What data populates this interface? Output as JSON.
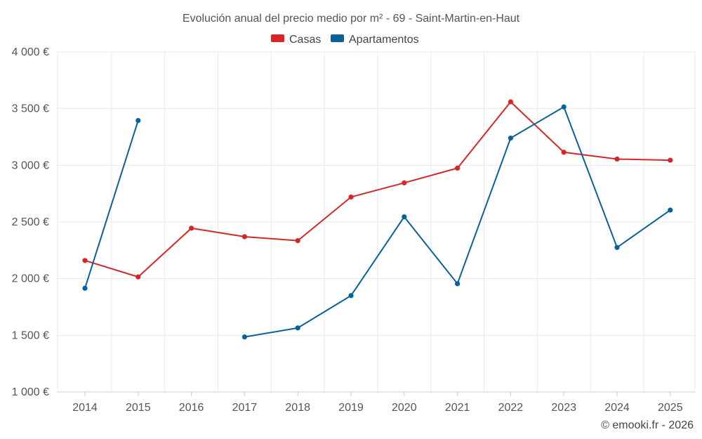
{
  "chart_data": {
    "type": "line",
    "title": "Evolución anual del precio medio por m² - 69 - Saint-Martin-en-Haut",
    "categories": [
      "2014",
      "2015",
      "2016",
      "2017",
      "2018",
      "2019",
      "2020",
      "2021",
      "2022",
      "2023",
      "2024",
      "2025"
    ],
    "ylim": [
      1000,
      4000
    ],
    "y_ticks": [
      1000,
      1500,
      2000,
      2500,
      3000,
      3500,
      4000
    ],
    "y_tick_labels": [
      "1 000 €",
      "1 500 €",
      "2 000 €",
      "2 500 €",
      "3 000 €",
      "3 500 €",
      "4 000 €"
    ],
    "legend_position": "top-center",
    "grid": true,
    "series": [
      {
        "name": "Casas",
        "color": "#d62728",
        "values": [
          2160,
          2015,
          2445,
          2370,
          2335,
          2720,
          2845,
          2975,
          3560,
          3115,
          3055,
          3045
        ]
      },
      {
        "name": "Apartamentos",
        "color": "#0a6199",
        "values": [
          1915,
          3395,
          null,
          1485,
          1565,
          1850,
          2545,
          1955,
          3240,
          3515,
          2275,
          2605
        ]
      }
    ]
  },
  "credit": "© emooki.fr - 2026"
}
